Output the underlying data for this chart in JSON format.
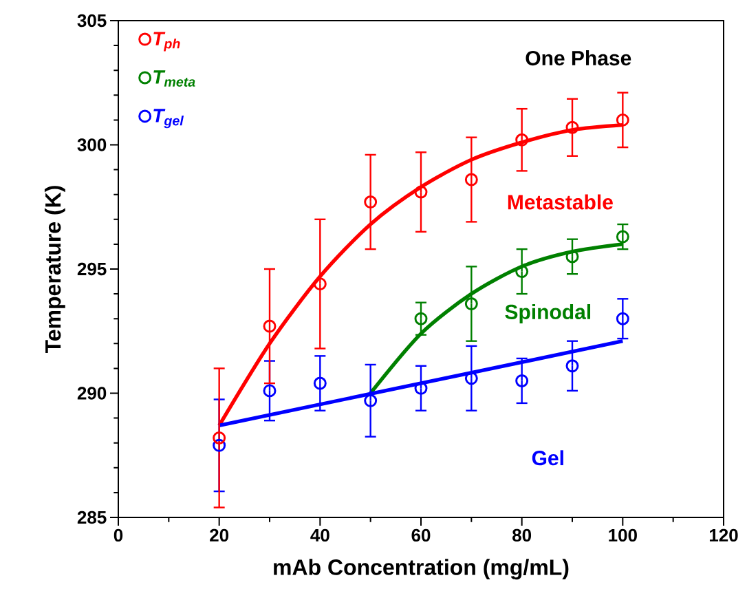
{
  "chart_data": {
    "type": "scatter",
    "xlabel": "mAb Concentration (mg/mL)",
    "ylabel": "Temperature (K)",
    "xlim": [
      0,
      120
    ],
    "ylim": [
      285,
      305
    ],
    "xticks": [
      0,
      20,
      40,
      60,
      80,
      100,
      120
    ],
    "yticks": [
      285,
      290,
      295,
      300,
      305
    ],
    "legend": "top left",
    "marker": "circle",
    "series": [
      {
        "name": "T$_{ph}$",
        "color": "#ff0000",
        "x": [
          20,
          30,
          40,
          50,
          60,
          70,
          80,
          90,
          100
        ],
        "values": [
          288.2,
          292.7,
          294.4,
          297.7,
          298.1,
          298.6,
          300.2,
          300.7,
          301.0
        ],
        "errors": [
          2.8,
          2.3,
          2.6,
          1.9,
          1.6,
          1.7,
          1.25,
          1.15,
          1.1
        ]
      },
      {
        "name": "T$_{meta}$",
        "color": "#008000",
        "x": [
          60,
          70,
          80,
          90,
          100
        ],
        "values": [
          293.0,
          293.6,
          294.9,
          295.5,
          296.3
        ],
        "errors": [
          0.65,
          1.5,
          0.9,
          0.7,
          0.5
        ]
      },
      {
        "name": "T$_{gel}$",
        "color": "#0000ff",
        "x": [
          20,
          30,
          40,
          50,
          60,
          70,
          80,
          90,
          100
        ],
        "values": [
          287.9,
          290.1,
          290.4,
          289.7,
          290.2,
          290.6,
          290.5,
          291.1,
          293.0
        ],
        "errors": [
          1.85,
          1.2,
          1.1,
          1.45,
          0.9,
          1.3,
          0.9,
          1.0,
          0.8
        ]
      },
      {
        "type": "line",
        "marker": "none",
        "color": "#ff0000",
        "x": [
          20,
          30,
          40,
          50,
          60,
          70,
          80,
          90,
          100
        ],
        "values": [
          288.7,
          292.0,
          294.7,
          296.8,
          298.3,
          299.4,
          300.1,
          300.6,
          300.8
        ]
      },
      {
        "type": "line",
        "marker": "none",
        "color": "#008000",
        "x": [
          50,
          60,
          70,
          80,
          90,
          100
        ],
        "values": [
          290.0,
          292.4,
          294.0,
          295.1,
          295.7,
          296.0
        ]
      },
      {
        "type": "line",
        "marker": "none",
        "color": "#0000ff",
        "x": [
          20,
          100
        ],
        "values": [
          288.7,
          292.1
        ]
      }
    ],
    "annotations": [
      "One Phase",
      "Metastable",
      "Spinodal",
      "Gel"
    ]
  }
}
